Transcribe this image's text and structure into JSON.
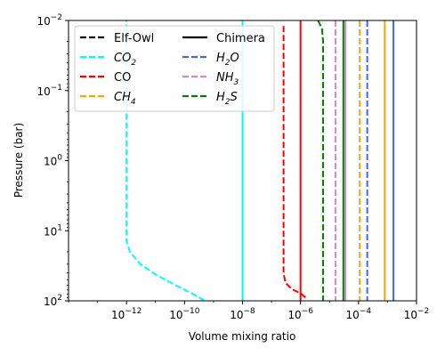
{
  "chart_data": {
    "type": "line",
    "xlabel": "Volume mixing ratio",
    "ylabel": "Pressure (bar)",
    "x_scale": "log",
    "y_scale": "log",
    "y_inverted": true,
    "xlim": [
      1e-14,
      0.01
    ],
    "ylim": [
      100,
      0.01
    ],
    "grid": false,
    "legend_placement": "top-left",
    "x_ticks": [
      {
        "value": 1e-12,
        "base": "10",
        "exp": "−12"
      },
      {
        "value": 1e-10,
        "base": "10",
        "exp": "−10"
      },
      {
        "value": 1e-08,
        "base": "10",
        "exp": "−8"
      },
      {
        "value": 1e-06,
        "base": "10",
        "exp": "−6"
      },
      {
        "value": 0.0001,
        "base": "10",
        "exp": "−4"
      },
      {
        "value": 0.01,
        "base": "10",
        "exp": "−2"
      }
    ],
    "y_ticks": [
      {
        "value": 0.01,
        "base": "10",
        "exp": "−2"
      },
      {
        "value": 0.1,
        "base": "10",
        "exp": "−1"
      },
      {
        "value": 1,
        "base": "10",
        "exp": "0"
      },
      {
        "value": 10,
        "base": "10",
        "exp": "1"
      },
      {
        "value": 100,
        "base": "10",
        "exp": "2"
      }
    ],
    "legend": [
      {
        "label": "Elf-Owl",
        "color": "#000000",
        "dash": true,
        "sub": null
      },
      {
        "label": "CO",
        "sub": "2",
        "prefix": "CO",
        "color": "#00ffff",
        "dash": true,
        "italic": true
      },
      {
        "label": "CO",
        "color": "#ff0000",
        "dash": true,
        "sub": null
      },
      {
        "label": "CH",
        "sub": "4",
        "prefix": "CH",
        "color": "#ffa500",
        "dash": true,
        "italic": true
      },
      {
        "label": "Chimera",
        "color": "#000000",
        "dash": false,
        "sub": null
      },
      {
        "label": "H",
        "sub": "2",
        "prefix": "H",
        "suffix": "O",
        "color": "#4169e1",
        "dash": true,
        "italic": true
      },
      {
        "label": "NH",
        "sub": "3",
        "prefix": "NH",
        "color": "#dd82d0",
        "dash": true,
        "italic": true
      },
      {
        "label": "H",
        "sub": "2",
        "prefix": "H",
        "suffix": "S",
        "color": "#008000",
        "dash": true,
        "italic": true
      }
    ],
    "series": [
      {
        "species": "CO2",
        "model": "Elf-Owl",
        "color": "#00ffff",
        "dashed": true,
        "points": [
          [
            1e-12,
            0.0085
          ],
          [
            1e-12,
            14
          ],
          [
            1.3e-12,
            20
          ],
          [
            3e-12,
            30
          ],
          [
            1e-11,
            42
          ],
          [
            5e-11,
            60
          ],
          [
            2e-10,
            80
          ],
          [
            5e-10,
            100
          ]
        ]
      },
      {
        "species": "CO",
        "model": "Elf-Owl",
        "color": "#ff0000",
        "dashed": true,
        "points": [
          [
            2.6e-07,
            0.012
          ],
          [
            2.6e-07,
            0.2
          ],
          [
            2.6e-07,
            3
          ],
          [
            2.6e-07,
            40
          ],
          [
            3e-07,
            55
          ],
          [
            5e-07,
            68
          ],
          [
            1e-06,
            78
          ],
          [
            1.5e-06,
            90
          ]
        ]
      },
      {
        "species": "H2S",
        "model": "Elf-Owl",
        "color": "#008000",
        "dashed": true,
        "points": [
          [
            4e-06,
            0.01
          ],
          [
            5.5e-06,
            0.013
          ],
          [
            6e-06,
            0.02
          ],
          [
            6e-06,
            100
          ]
        ]
      },
      {
        "species": "NH3",
        "model": "Elf-Owl",
        "color": "#dd82d0",
        "dashed": true,
        "points": [
          [
            1.6e-05,
            0.01
          ],
          [
            1.6e-05,
            100
          ]
        ]
      },
      {
        "species": "CH4",
        "model": "Elf-Owl",
        "color": "#ffa500",
        "dashed": true,
        "points": [
          [
            0.00011,
            0.01
          ],
          [
            0.00011,
            100
          ]
        ]
      },
      {
        "species": "H2O",
        "model": "Elf-Owl",
        "color": "#4169e1",
        "dashed": true,
        "points": [
          [
            0.0002,
            0.01
          ],
          [
            0.0002,
            100
          ]
        ]
      },
      {
        "species": "CO2",
        "model": "Chimera",
        "color": "#00ffff",
        "dashed": false,
        "points": [
          [
            1e-08,
            0.01
          ],
          [
            1e-08,
            100
          ]
        ]
      },
      {
        "species": "CO",
        "model": "Chimera",
        "color": "#ff0000",
        "dashed": false,
        "points": [
          [
            1e-06,
            0.01
          ],
          [
            1e-06,
            100
          ]
        ]
      },
      {
        "species": "H2S",
        "model": "Chimera",
        "color": "#008000",
        "dashed": false,
        "points": [
          [
            3e-05,
            0.01
          ],
          [
            3e-05,
            100
          ]
        ]
      },
      {
        "species": "NH3",
        "model": "Chimera",
        "color": "#dd82d0",
        "dashed": false,
        "points": [
          [
            3.5e-05,
            0.01
          ],
          [
            3.5e-05,
            100
          ]
        ]
      },
      {
        "species": "CH4",
        "model": "Chimera",
        "color": "#ffa500",
        "dashed": false,
        "points": [
          [
            0.0008,
            0.01
          ],
          [
            0.0008,
            100
          ]
        ]
      },
      {
        "species": "H2O",
        "model": "Chimera",
        "color": "#4169e1",
        "dashed": false,
        "points": [
          [
            0.0016,
            0.01
          ],
          [
            0.0016,
            100
          ]
        ]
      }
    ]
  }
}
